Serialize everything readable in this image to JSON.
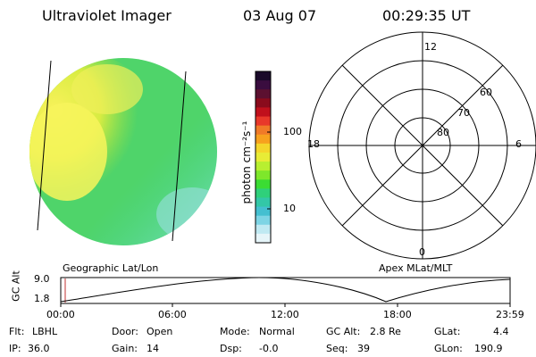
{
  "header": {
    "title": "Ultraviolet Imager",
    "date": "03 Aug 07",
    "time": "00:29:35 UT"
  },
  "colorbar": {
    "unit": "photon cm⁻²s⁻¹",
    "ticks": [
      "100",
      "10"
    ],
    "colors": [
      "#1a0a2a",
      "#3a0d3f",
      "#5c1030",
      "#8a0b1c",
      "#c0101c",
      "#e8382a",
      "#f07a28",
      "#f7a11e",
      "#f4d62b",
      "#e8ec36",
      "#b8ef30",
      "#7ee72b",
      "#3bdc33",
      "#2fd07a",
      "#33c7a7",
      "#44bfd0",
      "#7dd4e4",
      "#bfe9f2",
      "#e6f5f9"
    ]
  },
  "polar": {
    "mlt_labels": {
      "top": "12",
      "left": "18",
      "right": "6",
      "bottom": "0"
    },
    "lat_labels": [
      "60",
      "70",
      "80"
    ]
  },
  "timeline": {
    "ylabel": "GC Alt",
    "ymax": "9.0",
    "ymin": "1.8",
    "left_caption": "Geographic Lat/Lon",
    "right_caption": "Apex MLat/MLT",
    "ticks": [
      "00:00",
      "06:00",
      "12:00",
      "18:00",
      "23:59"
    ]
  },
  "status": {
    "flt_label": "Flt:",
    "flt_value": "LBHL",
    "ip_label": "IP:",
    "ip_value": "36.0",
    "door_label": "Door:",
    "door_value": "Open",
    "gain_label": "Gain:",
    "gain_value": "14",
    "mode_label": "Mode:",
    "mode_value": "Normal",
    "dsp_label": "Dsp:",
    "dsp_value": "-0.0",
    "gcalt_label": "GC Alt:",
    "gcalt_value": "2.8 Re",
    "seq_label": "Seq:",
    "seq_value": "39",
    "glat_label": "GLat:",
    "glat_value": "4.4",
    "glon_label": "GLon:",
    "glon_value": "190.9"
  }
}
